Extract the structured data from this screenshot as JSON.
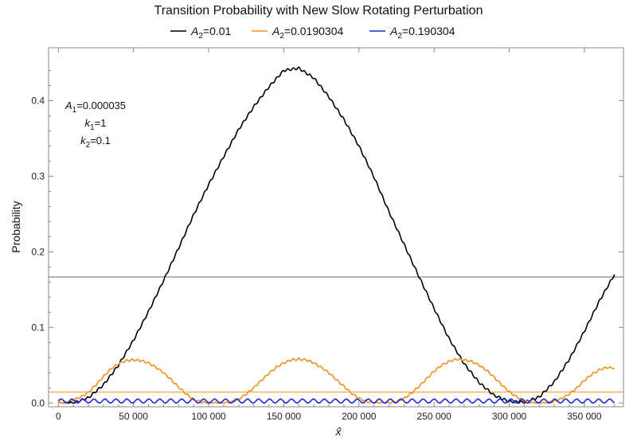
{
  "chart_data": {
    "type": "line",
    "title": "Transition Probability with New Slow Rotating Perturbation",
    "xlabel": "x̂",
    "ylabel": "Probability",
    "xlim": [
      -6500,
      376000
    ],
    "ylim": [
      -0.005,
      0.47
    ],
    "x_ticks": [
      0,
      50000,
      100000,
      150000,
      200000,
      250000,
      300000,
      350000
    ],
    "x_tick_labels": [
      "0",
      "50 000",
      "100 000",
      "150 000",
      "200 000",
      "250 000",
      "300 000",
      "350 000"
    ],
    "y_ticks": [
      0.0,
      0.1,
      0.2,
      0.3,
      0.4
    ],
    "y_tick_labels": [
      "0.0",
      "0.1",
      "0.2",
      "0.3",
      "0.4"
    ],
    "grid": false,
    "legend_position": "top",
    "annotations": {
      "a1": {
        "sym": "A",
        "sub": "1",
        "val": "=0.000035"
      },
      "k1": {
        "sym": "k",
        "sub": "1",
        "val": "=1"
      },
      "k2": {
        "sym": "k",
        "sub": "2",
        "val": "=0.1"
      }
    },
    "reference_lines": [
      {
        "y": 0.1667,
        "color": "#555555"
      },
      {
        "y": 0.0145,
        "color": "#f28e1c"
      }
    ],
    "series": [
      {
        "name": "A2=0.01",
        "sym": "A",
        "sub": "2",
        "val": "=0.01",
        "color": "#000000",
        "x_max": 370000,
        "x": [
          0,
          10000,
          20000,
          30000,
          40000,
          50000,
          60000,
          70000,
          80000,
          90000,
          100000,
          110000,
          120000,
          130000,
          140000,
          150000,
          160000,
          170000,
          180000,
          190000,
          200000,
          210000,
          220000,
          230000,
          240000,
          250000,
          260000,
          270000,
          280000,
          290000,
          300000,
          310000,
          320000,
          330000,
          340000,
          350000,
          360000,
          370000
        ],
        "y": [
          0.0,
          0.0,
          0.007,
          0.024,
          0.05,
          0.083,
          0.121,
          0.162,
          0.205,
          0.249,
          0.289,
          0.326,
          0.362,
          0.392,
          0.418,
          0.44,
          0.443,
          0.43,
          0.405,
          0.375,
          0.34,
          0.299,
          0.253,
          0.21,
          0.167,
          0.125,
          0.085,
          0.052,
          0.027,
          0.01,
          0.002,
          0.001,
          0.008,
          0.028,
          0.058,
          0.095,
          0.135,
          0.17
        ],
        "ripple": {
          "amplitude": 0.0015,
          "period": 3700
        }
      },
      {
        "name": "A2=0.0190304",
        "sym": "A",
        "sub": "2",
        "val": "=0.0190304",
        "color": "#f28e1c",
        "x_max": 370000,
        "x": [
          0,
          5000,
          10000,
          15000,
          20000,
          25000,
          30000,
          35000,
          40000,
          45000,
          50000,
          55000,
          60000,
          65000,
          70000,
          75000,
          80000,
          85000,
          90000,
          95000,
          100000,
          105000,
          110000,
          115000,
          120000,
          125000,
          130000,
          135000,
          140000,
          145000,
          150000,
          155000,
          160000,
          165000,
          170000,
          175000,
          180000,
          185000,
          190000,
          195000,
          200000,
          205000,
          210000,
          215000,
          220000,
          225000,
          230000,
          235000,
          240000,
          245000,
          250000,
          255000,
          260000,
          265000,
          270000,
          275000,
          280000,
          285000,
          290000,
          295000,
          300000,
          305000,
          310000,
          315000,
          320000,
          325000,
          330000,
          335000,
          340000,
          345000,
          350000,
          355000,
          360000,
          365000,
          370000
        ],
        "y": [
          0.0,
          0.001,
          0.004,
          0.008,
          0.014,
          0.024,
          0.035,
          0.045,
          0.052,
          0.056,
          0.057,
          0.056,
          0.053,
          0.047,
          0.04,
          0.031,
          0.021,
          0.012,
          0.005,
          0.001,
          0.0,
          0.0,
          0.0,
          0.001,
          0.005,
          0.012,
          0.02,
          0.03,
          0.039,
          0.047,
          0.053,
          0.057,
          0.058,
          0.057,
          0.053,
          0.047,
          0.04,
          0.031,
          0.022,
          0.013,
          0.006,
          0.002,
          0.0,
          0.0,
          0.0,
          0.002,
          0.006,
          0.013,
          0.022,
          0.032,
          0.042,
          0.05,
          0.055,
          0.058,
          0.057,
          0.055,
          0.05,
          0.043,
          0.034,
          0.024,
          0.015,
          0.008,
          0.003,
          0.0,
          0.0,
          0.0,
          0.002,
          0.006,
          0.012,
          0.02,
          0.03,
          0.038,
          0.044,
          0.047,
          0.046
        ],
        "ripple": {
          "amplitude": 0.0012,
          "period": 3700
        }
      },
      {
        "name": "A2=0.190304",
        "sym": "A",
        "sub": "2",
        "val": "=0.190304",
        "color": "#1f28d8",
        "x_max": 370000,
        "x": [
          0,
          370000
        ],
        "y": [
          0.0026,
          0.0026
        ],
        "ripple": {
          "amplitude": 0.0026,
          "period": 7300
        }
      }
    ]
  }
}
